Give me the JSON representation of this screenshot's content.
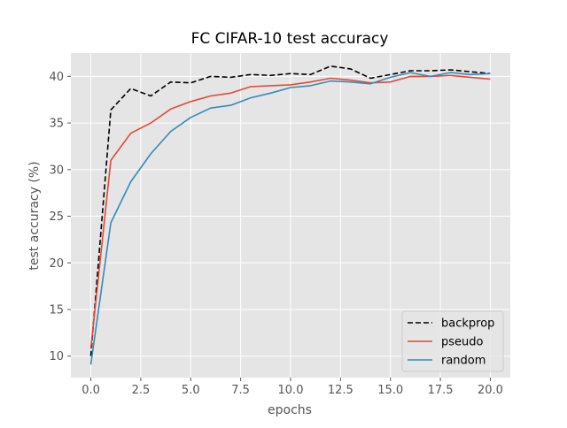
{
  "chart_data": {
    "type": "line",
    "title": "FC CIFAR-10 test accuracy",
    "xlabel": "epochs",
    "ylabel": "test accuracy (%)",
    "x": [
      0,
      1,
      2,
      3,
      4,
      5,
      6,
      7,
      8,
      9,
      10,
      11,
      12,
      13,
      14,
      15,
      16,
      17,
      18,
      19,
      20
    ],
    "xlim": [
      -1,
      21
    ],
    "ylim": [
      7.7,
      42.5
    ],
    "xticks": [
      "0.0",
      "2.5",
      "5.0",
      "7.5",
      "10.0",
      "12.5",
      "15.0",
      "17.5",
      "20.0"
    ],
    "xtick_values": [
      0,
      2.5,
      5,
      7.5,
      10,
      12.5,
      15,
      17.5,
      20
    ],
    "yticks": [
      "10",
      "15",
      "20",
      "25",
      "30",
      "35",
      "40"
    ],
    "ytick_values": [
      10,
      15,
      20,
      25,
      30,
      35,
      40
    ],
    "grid": true,
    "style": "ggplot",
    "legend_position": "lower-right",
    "series": [
      {
        "name": "backprop",
        "color": "#000000",
        "linestyle": "dashed",
        "values": [
          10.0,
          36.4,
          38.7,
          37.9,
          39.4,
          39.3,
          40.0,
          39.9,
          40.2,
          40.1,
          40.3,
          40.2,
          41.1,
          40.8,
          39.8,
          40.2,
          40.6,
          40.6,
          40.7,
          40.5,
          40.3
        ]
      },
      {
        "name": "pseudo",
        "color": "#E24A33",
        "linestyle": "solid",
        "values": [
          10.8,
          31.0,
          33.9,
          35.0,
          36.5,
          37.3,
          37.9,
          38.2,
          38.9,
          39.0,
          39.1,
          39.4,
          39.8,
          39.6,
          39.3,
          39.4,
          40.0,
          40.0,
          40.1,
          39.9,
          39.7
        ]
      },
      {
        "name": "random",
        "color": "#348ABD",
        "linestyle": "solid",
        "values": [
          9.1,
          24.3,
          28.7,
          31.7,
          34.1,
          35.6,
          36.6,
          36.9,
          37.7,
          38.2,
          38.8,
          39.0,
          39.5,
          39.4,
          39.2,
          39.9,
          40.4,
          40.0,
          40.4,
          40.2,
          40.3
        ]
      }
    ]
  }
}
